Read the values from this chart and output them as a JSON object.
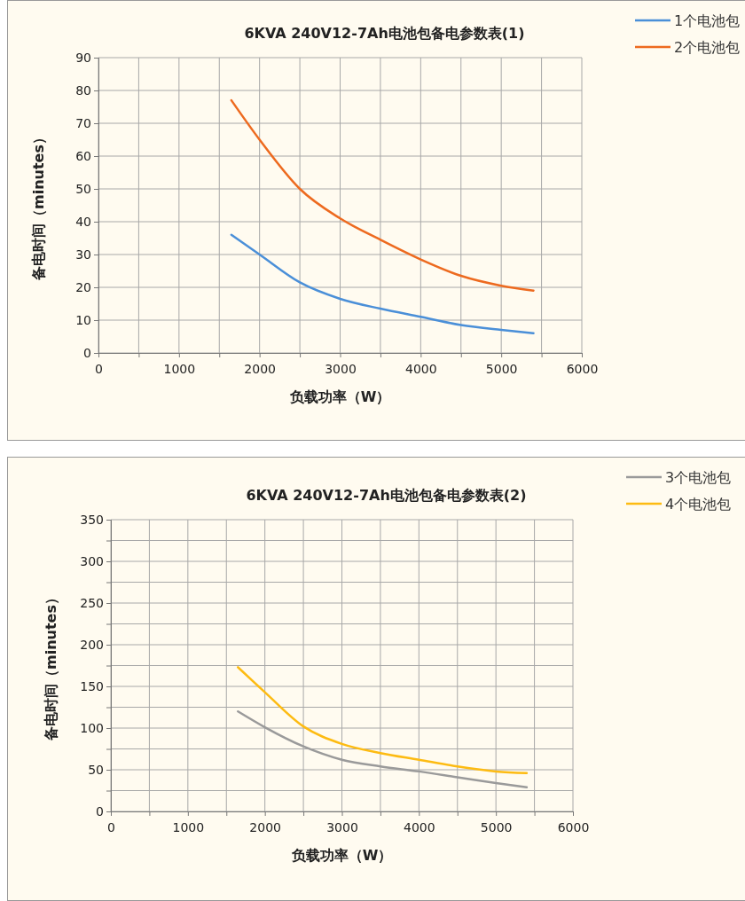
{
  "chart_data": [
    {
      "type": "line",
      "title": "6KVA 240V12-7Ah电池包备电参数表(1)",
      "xlabel": "负载功率（W）",
      "ylabel": "备电时间（minutes）",
      "x": [
        1650,
        2000,
        2500,
        3000,
        3500,
        4000,
        4500,
        5000,
        5400
      ],
      "series": [
        {
          "name": "1个电池包",
          "color": "#4a8fd8",
          "values": [
            36,
            30,
            21.5,
            16.5,
            13.5,
            11,
            8.5,
            7,
            6
          ]
        },
        {
          "name": "2个电池包",
          "color": "#ed6a1f",
          "values": [
            77,
            65,
            50,
            41,
            34.5,
            28.5,
            23.5,
            20.5,
            19
          ]
        }
      ],
      "xlim": [
        0,
        6000
      ],
      "xticks": [
        0,
        {
          "value": 500,
          "label": null
        },
        1000,
        {
          "value": 1500,
          "label": null
        },
        2000,
        {
          "value": 2500,
          "label": null
        },
        3000,
        {
          "value": 3500,
          "label": null
        },
        4000,
        {
          "value": 4500,
          "label": null
        },
        5000,
        {
          "value": 5500,
          "label": null
        },
        6000
      ],
      "ylim": [
        0,
        90
      ],
      "yticks": [
        0,
        10,
        20,
        30,
        40,
        50,
        60,
        70,
        80,
        90
      ],
      "grid": true,
      "legend": "top right",
      "marker": "none",
      "line_style": "solid"
    },
    {
      "type": "line",
      "title": "6KVA 240V12-7Ah电池包备电参数表(2)",
      "xlabel": "负载功率（W）",
      "ylabel": "备电时间（minutes）",
      "x": [
        1650,
        2000,
        2500,
        3000,
        3500,
        4000,
        4500,
        5000,
        5400
      ],
      "series": [
        {
          "name": "3个电池包",
          "color": "#9a9a9a",
          "values": [
            120,
            101,
            78,
            62,
            54,
            48,
            41,
            34,
            29
          ]
        },
        {
          "name": "4个电池包",
          "color": "#fdbb12",
          "values": [
            173,
            143,
            102,
            81,
            70,
            62,
            54,
            48,
            46
          ]
        }
      ],
      "xlim": [
        0,
        6000
      ],
      "xticks": [
        0,
        {
          "value": 500,
          "label": null
        },
        1000,
        {
          "value": 1500,
          "label": null
        },
        2000,
        {
          "value": 2500,
          "label": null
        },
        3000,
        {
          "value": 3500,
          "label": null
        },
        4000,
        {
          "value": 4500,
          "label": null
        },
        5000,
        {
          "value": 5500,
          "label": null
        },
        6000
      ],
      "ylim": [
        0,
        350
      ],
      "yticks": [
        0,
        {
          "value": 25,
          "label": null
        },
        50,
        {
          "value": 75,
          "label": null
        },
        100,
        {
          "value": 125,
          "label": null
        },
        150,
        {
          "value": 175,
          "label": null
        },
        200,
        {
          "value": 225,
          "label": null
        },
        250,
        {
          "value": 275,
          "label": null
        },
        300,
        {
          "value": 325,
          "label": null
        },
        350
      ],
      "grid": true,
      "legend": "top right",
      "marker": "none",
      "line_style": "solid"
    }
  ]
}
